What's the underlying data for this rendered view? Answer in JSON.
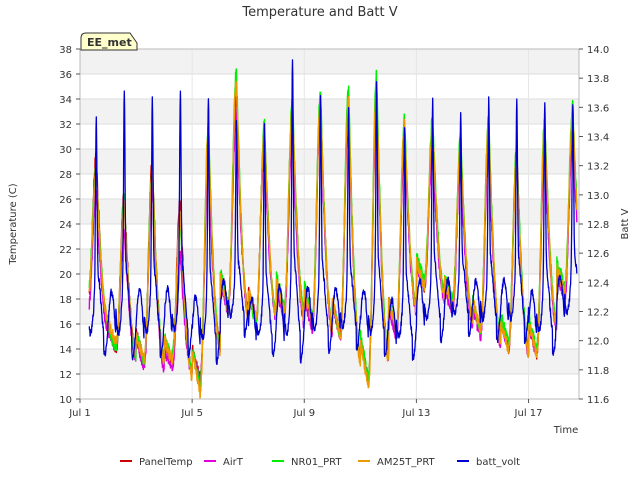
{
  "chart_data": {
    "type": "line",
    "title": "Temperature and Batt V",
    "xlabel": "Time",
    "ylabel": "Temperature (C)",
    "ylabel_right": "Batt V",
    "badge": "EE_met",
    "xlim": [
      0,
      17.8
    ],
    "ylim": [
      10,
      38
    ],
    "ylim_right": [
      11.6,
      14.0
    ],
    "x_ticks": [
      {
        "x": 0,
        "label": "Jul 1"
      },
      {
        "x": 4,
        "label": "Jul 5"
      },
      {
        "x": 8,
        "label": "Jul 9"
      },
      {
        "x": 12,
        "label": "Jul 13"
      },
      {
        "x": 16,
        "label": "Jul 17"
      }
    ],
    "y_ticks": [
      10,
      12,
      14,
      16,
      18,
      20,
      22,
      24,
      26,
      28,
      30,
      32,
      34,
      36,
      38
    ],
    "y_ticks_right": [
      "11.6",
      "11.8",
      "12.0",
      "12.2",
      "12.4",
      "12.6",
      "12.8",
      "13.0",
      "13.2",
      "13.4",
      "13.6",
      "13.8",
      "14.0"
    ],
    "grid": true,
    "legend": [
      {
        "name": "PanelTemp",
        "color": "#cc0000"
      },
      {
        "name": "AirT",
        "color": "#dd00dd"
      },
      {
        "name": "NR01_PRT",
        "color": "#00ee00"
      },
      {
        "name": "AM25T_PRT",
        "color": "#ee9900"
      },
      {
        "name": "batt_volt",
        "color": "#0000cc"
      }
    ],
    "daily_min_max": {
      "PanelTemp": [
        [
          17.5,
          29.5
        ],
        [
          14.0,
          26.5
        ],
        [
          13.0,
          29.0
        ],
        [
          13.0,
          25.8
        ],
        [
          11.5,
          29.5
        ],
        [
          17.5,
          34.5
        ],
        [
          16.5,
          31.5
        ],
        [
          17.0,
          32.5
        ],
        [
          16.0,
          34.0
        ],
        [
          15.0,
          34.0
        ],
        [
          11.5,
          34.5
        ],
        [
          15.5,
          31.5
        ],
        [
          19.0,
          31.0
        ],
        [
          17.5,
          30.0
        ],
        [
          15.5,
          31.0
        ],
        [
          14.0,
          30.0
        ],
        [
          13.5,
          31.0
        ],
        [
          18.5,
          32.0
        ]
      ],
      "AirT": [
        [
          17.0,
          26.5
        ],
        [
          14.0,
          23.5
        ],
        [
          12.5,
          27.0
        ],
        [
          12.5,
          21.5
        ],
        [
          11.5,
          28.5
        ],
        [
          17.0,
          33.0
        ],
        [
          16.5,
          30.0
        ],
        [
          16.5,
          31.5
        ],
        [
          15.5,
          33.0
        ],
        [
          15.0,
          33.0
        ],
        [
          11.5,
          33.5
        ],
        [
          15.0,
          30.5
        ],
        [
          19.0,
          30.0
        ],
        [
          17.0,
          29.0
        ],
        [
          15.0,
          30.0
        ],
        [
          14.0,
          29.0
        ],
        [
          13.5,
          30.0
        ],
        [
          18.0,
          31.0
        ]
      ],
      "NR01_PRT": [
        [
          18.5,
          28.5
        ],
        [
          14.0,
          26.0
        ],
        [
          13.0,
          28.5
        ],
        [
          13.5,
          24.0
        ],
        [
          11.0,
          32.0
        ],
        [
          17.5,
          36.3
        ],
        [
          16.0,
          32.0
        ],
        [
          17.5,
          34.0
        ],
        [
          16.5,
          34.5
        ],
        [
          15.0,
          35.0
        ],
        [
          11.5,
          36.0
        ],
        [
          15.5,
          32.5
        ],
        [
          19.5,
          32.5
        ],
        [
          18.0,
          31.0
        ],
        [
          15.5,
          32.5
        ],
        [
          14.5,
          30.0
        ],
        [
          14.0,
          32.5
        ],
        [
          19.0,
          33.5
        ]
      ],
      "AM25T_PRT": [
        [
          18.0,
          28.0
        ],
        [
          14.5,
          25.5
        ],
        [
          13.0,
          28.0
        ],
        [
          13.0,
          25.0
        ],
        [
          10.5,
          31.5
        ],
        [
          17.0,
          35.5
        ],
        [
          16.5,
          31.5
        ],
        [
          17.0,
          33.5
        ],
        [
          16.0,
          34.0
        ],
        [
          15.0,
          34.0
        ],
        [
          11.0,
          35.0
        ],
        [
          15.5,
          32.0
        ],
        [
          19.0,
          32.0
        ],
        [
          17.5,
          30.5
        ],
        [
          15.5,
          32.0
        ],
        [
          14.0,
          29.5
        ],
        [
          13.5,
          32.0
        ],
        [
          18.5,
          33.0
        ]
      ],
      "batt_volt": [
        [
          11.85,
          13.55
        ],
        [
          11.83,
          13.7
        ],
        [
          11.85,
          13.66
        ],
        [
          11.85,
          13.72
        ],
        [
          11.8,
          13.66
        ],
        [
          12.0,
          13.5
        ],
        [
          11.85,
          13.48
        ],
        [
          11.8,
          13.92
        ],
        [
          11.88,
          13.66
        ],
        [
          11.9,
          13.58
        ],
        [
          11.83,
          13.76
        ],
        [
          11.83,
          13.48
        ],
        [
          11.95,
          13.66
        ],
        [
          12.0,
          13.55
        ],
        [
          11.95,
          13.65
        ],
        [
          11.95,
          13.66
        ],
        [
          11.85,
          13.65
        ],
        [
          12.0,
          13.64
        ]
      ]
    }
  }
}
